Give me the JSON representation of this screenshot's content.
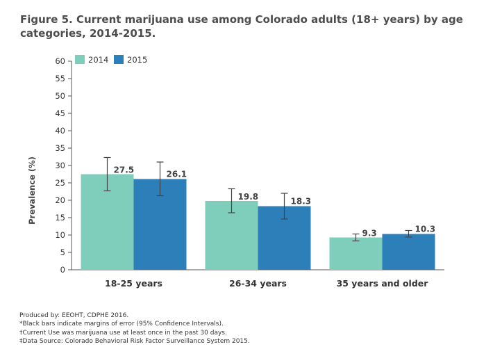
{
  "chart_data": {
    "type": "bar",
    "title": "Figure 5. Current marijuana use among Colorado adults (18+ years) by age categories, 2014-2015.",
    "xlabel": "",
    "ylabel": "Prevalence (%)",
    "ylim": [
      0,
      60
    ],
    "yticks": [
      0,
      5,
      10,
      15,
      20,
      25,
      30,
      35,
      40,
      45,
      50,
      55,
      60
    ],
    "grid": false,
    "legend_position": "top-left",
    "categories": [
      "18-25 years",
      "26-34 years",
      "35 years and older"
    ],
    "series": [
      {
        "name": "2014",
        "color": "#7fcdbb",
        "values": [
          27.5,
          19.8,
          9.3
        ],
        "labels": [
          "27.5",
          "19.8",
          "9.3"
        ],
        "ci_lower": [
          22.7,
          16.4,
          8.3
        ],
        "ci_upper": [
          32.3,
          23.3,
          10.3
        ]
      },
      {
        "name": "2015",
        "color": "#2c7fb8",
        "values": [
          26.1,
          18.3,
          10.3
        ],
        "labels": [
          "26.1",
          "18.3",
          "10.3"
        ],
        "ci_lower": [
          21.3,
          14.6,
          9.4
        ],
        "ci_upper": [
          31.0,
          22.0,
          11.3
        ]
      }
    ]
  },
  "notes": {
    "produced_by": "Produced by: EEOHT, CDPHE 2016.",
    "error_bars": "*Black bars indicate margins of error (95% Confidence Intervals).",
    "definition": "†Current Use was marijuana use at least once in the past 30 days.",
    "source": "‡Data Source: Colorado Behavioral Risk Factor Surveillance System 2015."
  }
}
